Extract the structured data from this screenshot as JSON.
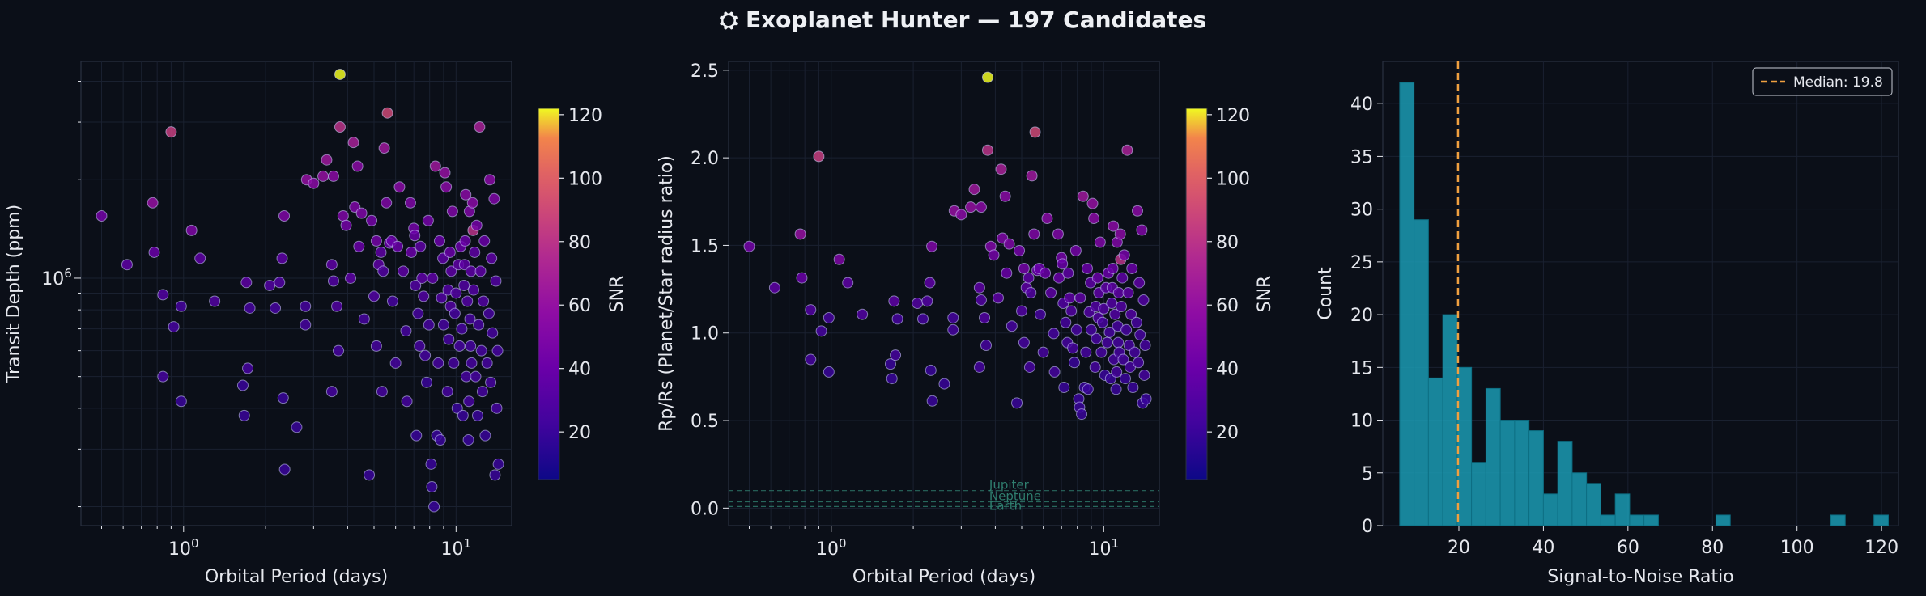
{
  "figure": {
    "title": "Exoplanet Hunter — 197 Candidates",
    "title_icon": "telescope-icon"
  },
  "colors": {
    "background": "#0b0f18",
    "axes_bg": "#0b0f18",
    "axes_edge": "#2a3140",
    "grid": "#1a2130",
    "text": "#e6e8ee",
    "hist_bar": "#1b9ab3",
    "hist_edge": "#0d6e82",
    "median_line": "#f0a040",
    "ref_line": "#2f7d6e",
    "marker_edge": "#d0d4ff"
  },
  "chart_data": [
    {
      "type": "scatter",
      "xlabel": "Orbital Period (days)",
      "ylabel": "Transit Depth (ppm)",
      "xscale": "log",
      "yscale": "log",
      "xlim": [
        0.42,
        16
      ],
      "ylim": [
        0.175,
        4.6
      ],
      "x_tick_labels": [
        "10^0",
        "10^1"
      ],
      "y_tick_labels": [
        "10^6"
      ],
      "colorbar": {
        "label": "SNR",
        "range": [
          5,
          122
        ],
        "ticks": [
          20,
          40,
          60,
          80,
          100,
          120
        ],
        "colormap": "plasma"
      },
      "grid": true,
      "points_note": "y in units of 10^6 ppm",
      "points": [
        [
          0.5,
          1.55,
          45
        ],
        [
          0.62,
          1.1,
          35
        ],
        [
          0.77,
          1.7,
          60
        ],
        [
          0.78,
          1.2,
          40
        ],
        [
          0.84,
          0.89,
          30
        ],
        [
          0.84,
          0.5,
          25
        ],
        [
          0.9,
          2.8,
          85
        ],
        [
          0.92,
          0.71,
          25
        ],
        [
          0.98,
          0.82,
          25
        ],
        [
          0.98,
          0.42,
          20
        ],
        [
          1.07,
          1.4,
          50
        ],
        [
          1.15,
          1.15,
          35
        ],
        [
          1.3,
          0.85,
          30
        ],
        [
          1.65,
          0.47,
          20
        ],
        [
          1.67,
          0.38,
          20
        ],
        [
          1.7,
          0.97,
          35
        ],
        [
          1.72,
          0.53,
          25
        ],
        [
          1.75,
          0.81,
          25
        ],
        [
          2.07,
          0.95,
          30
        ],
        [
          2.17,
          0.81,
          25
        ],
        [
          2.25,
          0.97,
          30
        ],
        [
          2.3,
          1.15,
          35
        ],
        [
          2.32,
          0.43,
          20
        ],
        [
          2.35,
          0.26,
          20
        ],
        [
          2.34,
          1.55,
          50
        ],
        [
          2.6,
          0.35,
          20
        ],
        [
          2.8,
          0.82,
          25
        ],
        [
          2.8,
          0.72,
          25
        ],
        [
          2.83,
          2.0,
          60
        ],
        [
          3.0,
          1.95,
          55
        ],
        [
          3.25,
          2.05,
          60
        ],
        [
          3.35,
          2.3,
          65
        ],
        [
          3.5,
          1.1,
          35
        ],
        [
          3.55,
          2.05,
          55
        ],
        [
          3.55,
          0.98,
          30
        ],
        [
          3.5,
          0.45,
          25
        ],
        [
          3.65,
          0.82,
          30
        ],
        [
          3.75,
          4.2,
          122
        ],
        [
          3.75,
          2.9,
          80
        ],
        [
          3.7,
          0.6,
          25
        ],
        [
          3.85,
          1.55,
          50
        ],
        [
          3.95,
          1.45,
          45
        ],
        [
          4.1,
          1.0,
          35
        ],
        [
          4.2,
          2.6,
          70
        ],
        [
          4.25,
          1.65,
          50
        ],
        [
          4.35,
          2.2,
          55
        ],
        [
          4.4,
          1.25,
          40
        ],
        [
          4.5,
          1.58,
          50
        ],
        [
          4.6,
          0.75,
          25
        ],
        [
          4.8,
          0.25,
          20
        ],
        [
          4.9,
          1.5,
          45
        ],
        [
          5.0,
          0.88,
          30
        ],
        [
          5.1,
          0.62,
          25
        ],
        [
          5.1,
          1.3,
          45
        ],
        [
          5.2,
          1.1,
          35
        ],
        [
          5.3,
          1.2,
          35
        ],
        [
          5.35,
          0.45,
          25
        ],
        [
          5.4,
          1.05,
          30
        ],
        [
          5.45,
          2.5,
          65
        ],
        [
          5.55,
          1.7,
          50
        ],
        [
          5.6,
          3.2,
          90
        ],
        [
          5.7,
          1.28,
          40
        ],
        [
          5.8,
          1.3,
          40
        ],
        [
          5.85,
          0.85,
          25
        ],
        [
          6.0,
          0.55,
          25
        ],
        [
          6.1,
          1.25,
          40
        ],
        [
          6.2,
          1.9,
          55
        ],
        [
          6.4,
          1.05,
          35
        ],
        [
          6.55,
          0.69,
          25
        ],
        [
          6.6,
          0.42,
          25
        ],
        [
          6.8,
          1.7,
          50
        ],
        [
          6.85,
          1.2,
          40
        ],
        [
          7.0,
          1.42,
          45
        ],
        [
          7.05,
          1.35,
          40
        ],
        [
          7.1,
          0.95,
          30
        ],
        [
          7.15,
          0.33,
          20
        ],
        [
          7.25,
          0.78,
          25
        ],
        [
          7.35,
          0.62,
          25
        ],
        [
          7.4,
          1.25,
          35
        ],
        [
          7.5,
          1.0,
          35
        ],
        [
          7.6,
          0.88,
          30
        ],
        [
          7.7,
          0.58,
          25
        ],
        [
          7.8,
          0.48,
          20
        ],
        [
          7.9,
          1.5,
          45
        ],
        [
          7.95,
          0.72,
          25
        ],
        [
          8.1,
          0.27,
          20
        ],
        [
          8.15,
          0.23,
          20
        ],
        [
          8.2,
          1.0,
          35
        ],
        [
          8.3,
          0.2,
          20
        ],
        [
          8.4,
          2.2,
          65
        ],
        [
          8.5,
          0.33,
          20
        ],
        [
          8.6,
          0.55,
          25
        ],
        [
          8.7,
          1.3,
          40
        ],
        [
          8.75,
          0.32,
          20
        ],
        [
          8.85,
          0.87,
          30
        ],
        [
          8.95,
          1.15,
          35
        ],
        [
          9.0,
          0.72,
          25
        ],
        [
          9.1,
          2.1,
          60
        ],
        [
          9.2,
          1.9,
          55
        ],
        [
          9.3,
          0.45,
          25
        ],
        [
          9.35,
          0.92,
          30
        ],
        [
          9.4,
          0.65,
          25
        ],
        [
          9.5,
          1.2,
          40
        ],
        [
          9.55,
          0.82,
          30
        ],
        [
          9.6,
          1.05,
          35
        ],
        [
          9.7,
          1.6,
          50
        ],
        [
          9.8,
          0.55,
          25
        ],
        [
          9.9,
          0.78,
          25
        ],
        [
          10.0,
          0.9,
          30
        ],
        [
          10.1,
          0.4,
          20
        ],
        [
          10.2,
          1.1,
          35
        ],
        [
          10.3,
          0.62,
          25
        ],
        [
          10.4,
          1.25,
          40
        ],
        [
          10.5,
          0.7,
          25
        ],
        [
          10.6,
          0.38,
          20
        ],
        [
          10.7,
          0.95,
          30
        ],
        [
          10.75,
          1.1,
          35
        ],
        [
          10.8,
          1.3,
          40
        ],
        [
          10.85,
          1.8,
          55
        ],
        [
          10.9,
          0.5,
          25
        ],
        [
          11.0,
          0.85,
          30
        ],
        [
          11.1,
          0.32,
          20
        ],
        [
          11.15,
          0.42,
          25
        ],
        [
          11.2,
          1.6,
          50
        ],
        [
          11.25,
          0.75,
          25
        ],
        [
          11.3,
          0.62,
          25
        ],
        [
          11.35,
          1.05,
          35
        ],
        [
          11.4,
          0.55,
          25
        ],
        [
          11.5,
          1.7,
          55
        ],
        [
          11.55,
          1.4,
          80
        ],
        [
          11.6,
          0.92,
          30
        ],
        [
          11.7,
          1.2,
          35
        ],
        [
          11.8,
          0.5,
          25
        ],
        [
          11.9,
          1.45,
          45
        ],
        [
          12.0,
          0.38,
          20
        ],
        [
          12.1,
          0.72,
          25
        ],
        [
          12.2,
          2.9,
          70
        ],
        [
          12.3,
          1.05,
          35
        ],
        [
          12.4,
          0.6,
          25
        ],
        [
          12.5,
          0.45,
          25
        ],
        [
          12.6,
          0.85,
          30
        ],
        [
          12.7,
          1.3,
          40
        ],
        [
          12.8,
          0.33,
          20
        ],
        [
          13.0,
          0.55,
          25
        ],
        [
          13.2,
          0.78,
          25
        ],
        [
          13.3,
          2.0,
          55
        ],
        [
          13.4,
          0.48,
          25
        ],
        [
          13.5,
          1.15,
          35
        ],
        [
          13.6,
          0.68,
          25
        ],
        [
          13.8,
          1.75,
          50
        ],
        [
          13.9,
          0.25,
          20
        ],
        [
          14.0,
          0.98,
          30
        ],
        [
          14.1,
          0.4,
          25
        ],
        [
          14.2,
          0.6,
          25
        ],
        [
          14.3,
          0.27,
          20
        ]
      ]
    },
    {
      "type": "scatter",
      "xlabel": "Orbital Period (days)",
      "ylabel": "Rp/Rs (Planet/Star radius ratio)",
      "xscale": "log",
      "yscale": "linear",
      "xlim": [
        0.42,
        16
      ],
      "ylim": [
        -0.1,
        2.55
      ],
      "x_tick_labels": [
        "10^0",
        "10^1"
      ],
      "y_ticks": [
        0.0,
        0.5,
        1.0,
        1.5,
        2.0,
        2.5
      ],
      "colorbar": {
        "label": "SNR",
        "range": [
          5,
          122
        ],
        "ticks": [
          20,
          40,
          60,
          80,
          100,
          120
        ],
        "colormap": "plasma"
      },
      "reference_lines": [
        {
          "label": "Jupiter",
          "y": 0.1
        },
        {
          "label": "Neptune",
          "y": 0.036
        },
        {
          "label": "Earth",
          "y": 0.009
        }
      ],
      "grid": true
    },
    {
      "type": "bar",
      "subtype": "histogram",
      "xlabel": "Signal-to-Noise Ratio",
      "ylabel": "Count",
      "xlim": [
        2,
        124
      ],
      "ylim": [
        0,
        44
      ],
      "x_ticks": [
        20,
        40,
        60,
        80,
        100,
        120
      ],
      "y_ticks": [
        0,
        5,
        10,
        15,
        20,
        25,
        30,
        35,
        40
      ],
      "bin_start": 6,
      "bin_width": 3.4,
      "counts": [
        42,
        29,
        14,
        20,
        15,
        6,
        13,
        10,
        10,
        9,
        3,
        8,
        5,
        4,
        1,
        3,
        1,
        1,
        0,
        0,
        0,
        0,
        1,
        0,
        0,
        0,
        0,
        0,
        0,
        0,
        1,
        0,
        0,
        1
      ],
      "median": {
        "value": 19.8,
        "label": "Median: 19.8"
      },
      "legend_position": "upper right",
      "grid": true
    }
  ]
}
